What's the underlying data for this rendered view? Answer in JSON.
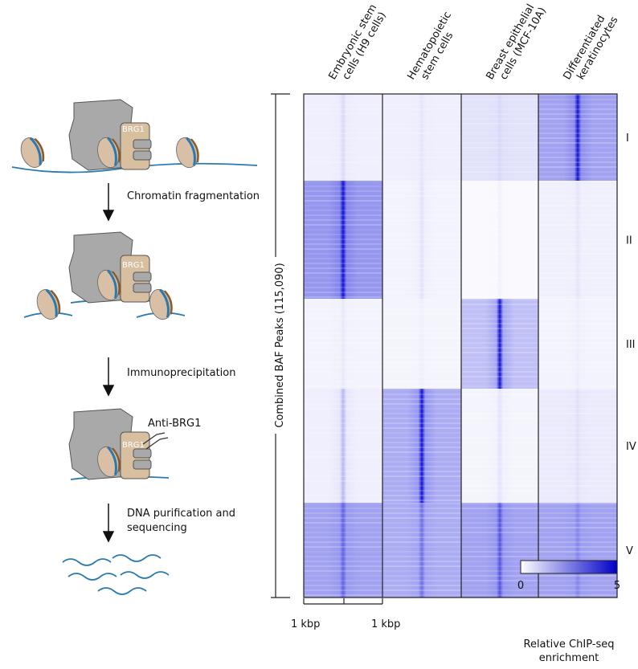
{
  "schematic": {
    "complex_labels": [
      "BRG1",
      "BRG1",
      "BRG1"
    ],
    "antibody": "Anti-BRG1",
    "steps": [
      [
        "Chromatin fragmentation"
      ],
      [
        "Immunoprecipitation"
      ],
      [
        "DNA purification and",
        "sequencing"
      ]
    ]
  },
  "heatmap": {
    "columns": [
      [
        "Embryonic stem",
        "cells (H9 cells)"
      ],
      [
        "Hematopoietic",
        "stem cells"
      ],
      [
        "Breast epithelial",
        "cells (MCF-10A)"
      ],
      [
        "Differentiated",
        "keratinocytes"
      ]
    ],
    "row_axis_label": "Combined BAF Peaks (115,090)",
    "clusters": [
      "I",
      "II",
      "III",
      "IV",
      "V"
    ],
    "scale_bar": {
      "left": "1 kbp",
      "right": "1 kbp"
    },
    "colorbar": {
      "min": 0,
      "max": 5,
      "label": [
        "Relative ChIP-seq",
        "enrichment"
      ]
    }
  }
}
